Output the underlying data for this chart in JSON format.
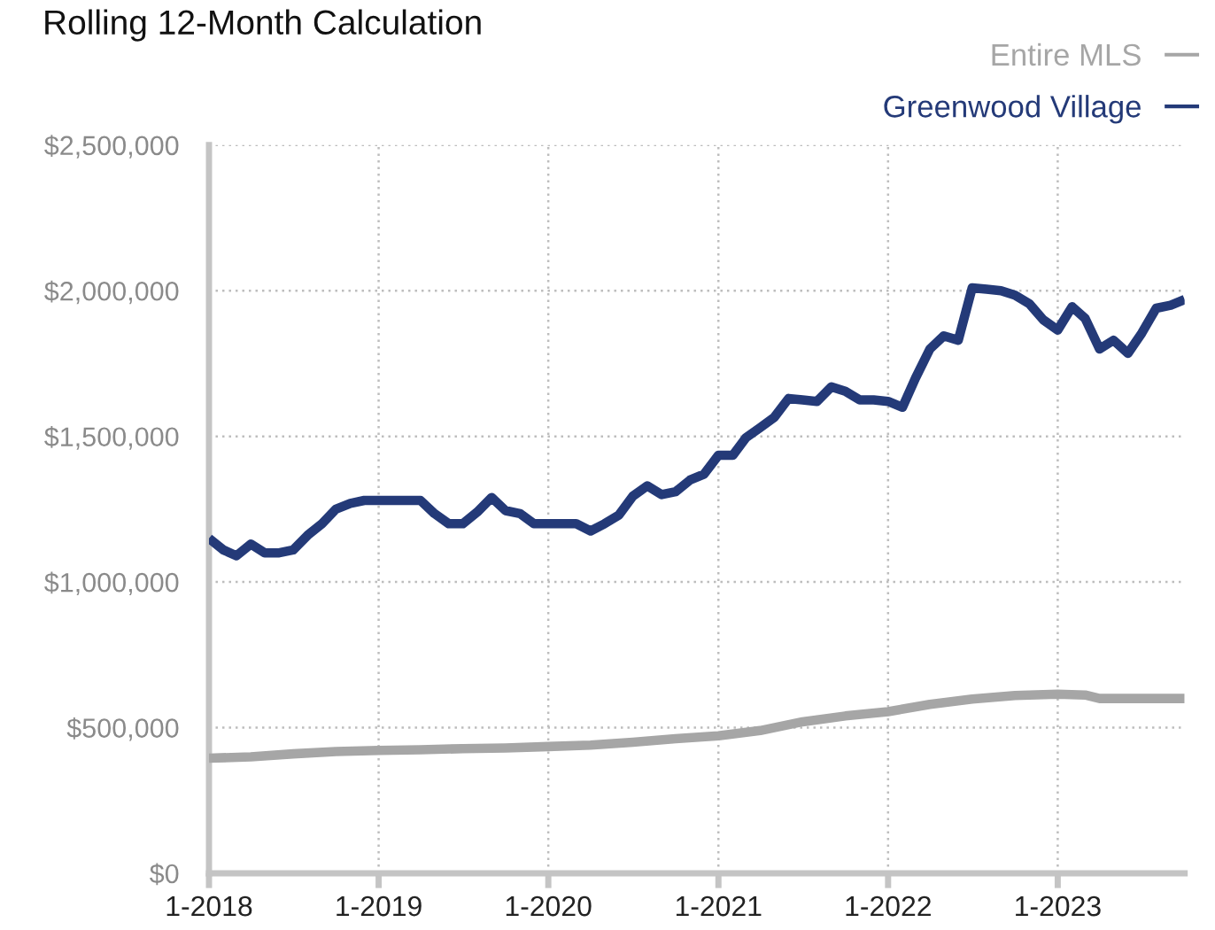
{
  "chart_data": {
    "type": "line",
    "title": "Rolling 12-Month Calculation",
    "x": [
      "2018-01",
      "2018-02",
      "2018-03",
      "2018-04",
      "2018-05",
      "2018-06",
      "2018-07",
      "2018-08",
      "2018-09",
      "2018-10",
      "2018-11",
      "2018-12",
      "2019-01",
      "2019-02",
      "2019-03",
      "2019-04",
      "2019-05",
      "2019-06",
      "2019-07",
      "2019-08",
      "2019-09",
      "2019-10",
      "2019-11",
      "2019-12",
      "2020-01",
      "2020-02",
      "2020-03",
      "2020-04",
      "2020-05",
      "2020-06",
      "2020-07",
      "2020-08",
      "2020-09",
      "2020-10",
      "2020-11",
      "2020-12",
      "2021-01",
      "2021-02",
      "2021-03",
      "2021-04",
      "2021-05",
      "2021-06",
      "2021-07",
      "2021-08",
      "2021-09",
      "2021-10",
      "2021-11",
      "2021-12",
      "2022-01",
      "2022-02",
      "2022-03",
      "2022-04",
      "2022-05",
      "2022-06",
      "2022-07",
      "2022-08",
      "2022-09",
      "2022-10",
      "2022-11",
      "2022-12",
      "2023-01",
      "2023-02",
      "2023-03",
      "2023-04",
      "2023-05",
      "2023-06",
      "2023-07",
      "2023-08",
      "2023-09",
      "2023-10"
    ],
    "series": [
      {
        "name": "Entire MLS",
        "color": "#a6a6a6",
        "x": [
          "2018-01",
          "2018-04",
          "2018-07",
          "2018-10",
          "2019-01",
          "2019-04",
          "2019-07",
          "2019-10",
          "2020-01",
          "2020-04",
          "2020-07",
          "2020-10",
          "2021-01",
          "2021-04",
          "2021-07",
          "2021-10",
          "2022-01",
          "2022-04",
          "2022-07",
          "2022-10",
          "2023-01",
          "2023-03",
          "2023-04",
          "2023-07",
          "2023-10"
        ],
        "values": [
          395000,
          400000,
          410000,
          418000,
          422000,
          424000,
          428000,
          430000,
          435000,
          440000,
          450000,
          462000,
          472000,
          490000,
          520000,
          540000,
          555000,
          580000,
          598000,
          610000,
          615000,
          612000,
          600000,
          600000,
          600000
        ]
      },
      {
        "name": "Greenwood Village",
        "color": "#243a78",
        "values": [
          1150000,
          1110000,
          1090000,
          1130000,
          1100000,
          1100000,
          1110000,
          1160000,
          1200000,
          1250000,
          1270000,
          1280000,
          1280000,
          1280000,
          1280000,
          1280000,
          1235000,
          1200000,
          1200000,
          1240000,
          1290000,
          1245000,
          1235000,
          1200000,
          1200000,
          1200000,
          1200000,
          1175000,
          1200000,
          1230000,
          1295000,
          1330000,
          1300000,
          1310000,
          1350000,
          1370000,
          1435000,
          1435000,
          1495000,
          1530000,
          1565000,
          1630000,
          1625000,
          1620000,
          1670000,
          1655000,
          1625000,
          1625000,
          1620000,
          1600000,
          1700000,
          1800000,
          1845000,
          1830000,
          2010000,
          2005000,
          2000000,
          1985000,
          1955000,
          1900000,
          1865000,
          1945000,
          1905000,
          1800000,
          1830000,
          1785000,
          1855000,
          1940000,
          1950000,
          1970000
        ]
      }
    ],
    "xlim": [
      "2018-01",
      "2023-10"
    ],
    "xticks": [
      {
        "value": "2018-01",
        "label": "1-2018"
      },
      {
        "value": "2019-01",
        "label": "1-2019"
      },
      {
        "value": "2020-01",
        "label": "1-2020"
      },
      {
        "value": "2021-01",
        "label": "1-2021"
      },
      {
        "value": "2022-01",
        "label": "1-2022"
      },
      {
        "value": "2023-01",
        "label": "1-2023"
      }
    ],
    "ylim": [
      0,
      2500000
    ],
    "yticks": [
      {
        "value": 0,
        "label": "$0"
      },
      {
        "value": 500000,
        "label": "$500,000"
      },
      {
        "value": 1000000,
        "label": "$1,000,000"
      },
      {
        "value": 1500000,
        "label": "$1,500,000"
      },
      {
        "value": 2000000,
        "label": "$2,000,000"
      },
      {
        "value": 2500000,
        "label": "$2,500,000"
      }
    ],
    "grid": true,
    "legend": "top right"
  }
}
